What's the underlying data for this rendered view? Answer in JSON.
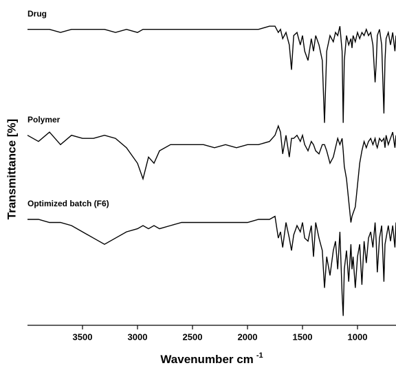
{
  "chart_data": {
    "type": "line",
    "xlabel": "Wavenumber cm",
    "xlabel_exponent": "-1",
    "ylabel": "Transmittance [%]",
    "xlim": [
      4000,
      650
    ],
    "xticks": [
      3500,
      3000,
      2500,
      2000,
      1500,
      1000
    ],
    "ylim": [
      0,
      100
    ],
    "x": [
      4000,
      3900,
      3800,
      3700,
      3600,
      3500,
      3400,
      3300,
      3200,
      3100,
      3000,
      2950,
      2900,
      2850,
      2800,
      2700,
      2600,
      2500,
      2400,
      2300,
      2200,
      2100,
      2000,
      1900,
      1800,
      1750,
      1720,
      1700,
      1680,
      1650,
      1620,
      1600,
      1580,
      1550,
      1520,
      1500,
      1480,
      1450,
      1420,
      1400,
      1380,
      1350,
      1320,
      1300,
      1280,
      1250,
      1220,
      1200,
      1180,
      1160,
      1140,
      1130,
      1120,
      1100,
      1080,
      1060,
      1050,
      1040,
      1020,
      1000,
      980,
      960,
      940,
      920,
      900,
      880,
      860,
      840,
      830,
      820,
      800,
      780,
      760,
      750,
      740,
      720,
      700,
      680,
      660,
      650
    ],
    "series": [
      {
        "name": "Drug",
        "color": "#000000",
        "values": [
          95,
          95,
          95,
          94,
          95,
          95,
          95,
          95,
          94,
          95,
          94,
          95,
          95,
          95,
          95,
          95,
          95,
          95,
          95,
          95,
          95,
          95,
          95,
          95,
          96,
          96,
          94,
          95,
          92,
          94,
          90,
          82,
          93,
          94,
          90,
          93,
          88,
          85,
          92,
          88,
          93,
          90,
          85,
          65,
          88,
          93,
          91,
          94,
          93,
          96,
          88,
          65,
          85,
          93,
          90,
          92,
          89,
          93,
          91,
          94,
          92,
          94,
          93,
          95,
          93,
          94,
          90,
          78,
          84,
          93,
          95,
          90,
          68,
          85,
          92,
          94,
          90,
          94,
          88,
          93
        ]
      },
      {
        "name": "Polymer",
        "color": "#000000",
        "values": [
          61,
          59,
          62,
          58,
          61,
          60,
          60,
          61,
          60,
          57,
          52,
          47,
          54,
          52,
          56,
          58,
          58,
          58,
          58,
          57,
          58,
          57,
          58,
          58,
          59,
          61,
          64,
          62,
          55,
          61,
          54,
          60,
          60,
          61,
          59,
          61,
          58,
          56,
          59,
          58,
          56,
          55,
          58,
          58,
          56,
          52,
          54,
          57,
          60,
          58,
          60,
          56,
          51,
          47,
          40,
          33,
          35,
          36,
          38,
          45,
          52,
          56,
          59,
          57,
          59,
          60,
          58,
          60,
          58,
          57,
          60,
          59,
          60,
          57,
          61,
          58,
          60,
          62,
          57,
          61
        ]
      },
      {
        "name": "Optimized batch (F6)",
        "color": "#000000",
        "values": [
          34,
          34,
          33,
          33,
          32,
          30,
          28,
          26,
          28,
          30,
          31,
          32,
          31,
          32,
          31,
          32,
          33,
          33,
          33,
          33,
          33,
          33,
          33,
          34,
          34,
          35,
          28,
          30,
          25,
          33,
          28,
          24,
          29,
          32,
          30,
          33,
          28,
          27,
          32,
          22,
          33,
          28,
          24,
          12,
          22,
          16,
          24,
          27,
          18,
          30,
          10,
          3,
          18,
          24,
          14,
          26,
          18,
          22,
          12,
          22,
          26,
          13,
          27,
          20,
          28,
          30,
          25,
          33,
          27,
          17,
          28,
          32,
          14,
          26,
          28,
          32,
          27,
          32,
          25,
          33
        ]
      }
    ]
  }
}
